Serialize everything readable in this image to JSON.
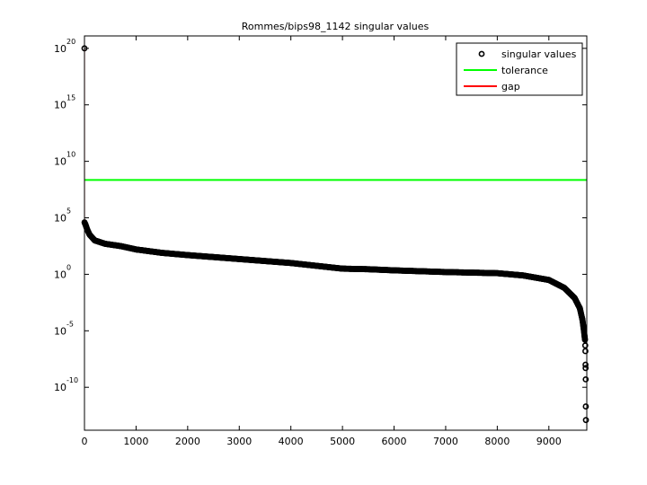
{
  "chart_data": {
    "type": "scatter",
    "title": "Rommes/bips98_1142 singular values",
    "xlabel": "",
    "ylabel": "",
    "xscale": "linear",
    "yscale": "log",
    "xlim": [
      0,
      9735
    ],
    "ylim_log10": [
      -13.8,
      21.1
    ],
    "x_ticks": [
      0,
      1000,
      2000,
      3000,
      4000,
      5000,
      6000,
      7000,
      8000,
      9000
    ],
    "x_tick_labels": [
      "0",
      "1000",
      "2000",
      "3000",
      "4000",
      "5000",
      "6000",
      "7000",
      "8000",
      "9000"
    ],
    "y_ticks_log10": [
      20,
      15,
      10,
      5,
      0,
      -5,
      -10
    ],
    "y_tick_base": "10",
    "y_tick_exponents": [
      "20",
      "15",
      "10",
      "5",
      "0",
      "-5",
      "-10"
    ],
    "grid": false,
    "legend_position": "top-right",
    "legend": [
      "singular values",
      "tolerance",
      "gap"
    ],
    "series": [
      {
        "name": "singular values",
        "marker": "circle",
        "color": "#000000",
        "points_log10": [
          [
            0,
            20
          ],
          [
            1,
            4.6
          ],
          [
            20,
            4.4
          ],
          [
            50,
            4.0
          ],
          [
            100,
            3.5
          ],
          [
            200,
            3.0
          ],
          [
            400,
            2.7
          ],
          [
            700,
            2.5
          ],
          [
            1000,
            2.2
          ],
          [
            1500,
            1.9
          ],
          [
            2000,
            1.7
          ],
          [
            3000,
            1.35
          ],
          [
            4000,
            1.0
          ],
          [
            5000,
            0.5
          ],
          [
            5500,
            0.45
          ],
          [
            6000,
            0.35
          ],
          [
            7000,
            0.2
          ],
          [
            8000,
            0.1
          ],
          [
            8500,
            -0.1
          ],
          [
            9000,
            -0.5
          ],
          [
            9300,
            -1.2
          ],
          [
            9500,
            -2.1
          ],
          [
            9600,
            -3.0
          ],
          [
            9650,
            -4.0
          ],
          [
            9680,
            -5.0
          ],
          [
            9700,
            -5.8
          ]
        ],
        "tail_points_log10": [
          [
            9705,
            -6.3
          ],
          [
            9708,
            -6.8
          ],
          [
            9710,
            -8.0
          ],
          [
            9712,
            -8.3
          ],
          [
            9714,
            -9.3
          ],
          [
            9716,
            -11.7
          ],
          [
            9718,
            -12.9
          ]
        ]
      },
      {
        "name": "tolerance",
        "type": "hline",
        "color": "#00ff00",
        "value_log10": 8.35
      },
      {
        "name": "gap",
        "type": "vline",
        "color": "#ff0000",
        "x": 1,
        "from_log10": 4.6,
        "to_log10": 20
      }
    ]
  }
}
